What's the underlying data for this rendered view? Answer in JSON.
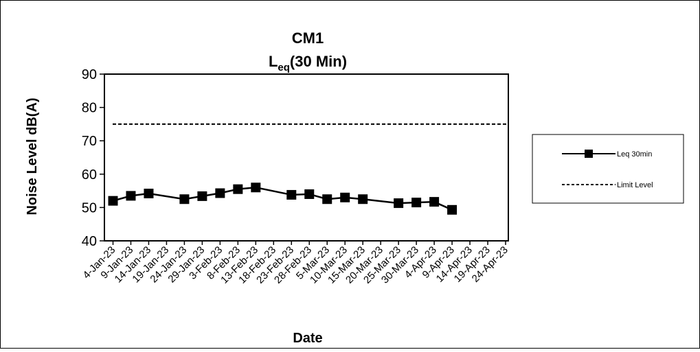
{
  "chart_data": {
    "type": "line",
    "title": "CM1",
    "subtitle_main": "L",
    "subtitle_sub": "eq",
    "subtitle_rest": "(30 Min)",
    "xlabel": "Date",
    "ylabel": "Noise Level dB(A)",
    "ylim": [
      40,
      90
    ],
    "yticks": [
      "40",
      "50",
      "60",
      "70",
      "80",
      "90"
    ],
    "categories": [
      "4-Jan-23",
      "9-Jan-23",
      "14-Jan-23",
      "19-Jan-23",
      "24-Jan-23",
      "29-Jan-23",
      "3-Feb-23",
      "8-Feb-23",
      "13-Feb-23",
      "18-Feb-23",
      "23-Feb-23",
      "28-Feb-23",
      "5-Mar-23",
      "10-Mar-23",
      "15-Mar-23",
      "20-Mar-23",
      "25-Mar-23",
      "30-Mar-23",
      "4-Apr-23",
      "9-Apr-23",
      "14-Apr-23",
      "19-Apr-23",
      "24-Apr-23"
    ],
    "grid": false,
    "legend_position": "right",
    "series": [
      {
        "name": "Leq 30min",
        "style": "solid-square-markers",
        "color": "#000000",
        "points": [
          {
            "x": "4-Jan-23",
            "y": 52.0
          },
          {
            "x": "9-Jan-23",
            "y": 53.5
          },
          {
            "x": "14-Jan-23",
            "y": 54.2
          },
          {
            "x": "24-Jan-23",
            "y": 52.5
          },
          {
            "x": "29-Jan-23",
            "y": 53.4
          },
          {
            "x": "3-Feb-23",
            "y": 54.3
          },
          {
            "x": "8-Feb-23",
            "y": 55.5
          },
          {
            "x": "13-Feb-23",
            "y": 56.0
          },
          {
            "x": "23-Feb-23",
            "y": 53.8
          },
          {
            "x": "28-Feb-23",
            "y": 54.0
          },
          {
            "x": "5-Mar-23",
            "y": 52.5
          },
          {
            "x": "10-Mar-23",
            "y": 53.0
          },
          {
            "x": "15-Mar-23",
            "y": 52.5
          },
          {
            "x": "25-Mar-23",
            "y": 51.3
          },
          {
            "x": "30-Mar-23",
            "y": 51.5
          },
          {
            "x": "4-Apr-23",
            "y": 51.7
          },
          {
            "x": "9-Apr-23",
            "y": 49.3
          }
        ]
      },
      {
        "name": "Limit Level",
        "style": "dashed",
        "color": "#000000",
        "constant": 75
      }
    ]
  }
}
